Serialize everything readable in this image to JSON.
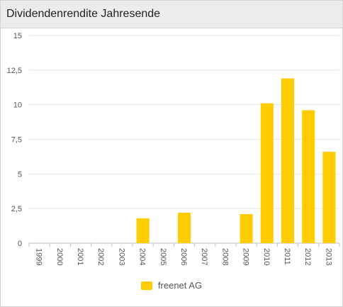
{
  "header": {
    "title": "Dividendenrendite Jahresende"
  },
  "colors": {
    "series": "#ffcc00",
    "grid": "#e6e6e6",
    "axis": "#c0c0c0",
    "tick_text": "#555555",
    "header_bg": "#ececec"
  },
  "chart_data": {
    "type": "bar",
    "title": "Dividendenrendite Jahresende",
    "categories": [
      "1999",
      "2000",
      "2001",
      "2002",
      "2003",
      "2004",
      "2005",
      "2006",
      "2007",
      "2008",
      "2009",
      "2010",
      "2011",
      "2012",
      "2013"
    ],
    "series": [
      {
        "name": "freenet AG",
        "values": [
          null,
          null,
          null,
          null,
          null,
          1.8,
          null,
          2.2,
          null,
          null,
          2.1,
          10.1,
          11.9,
          9.6,
          6.6
        ]
      }
    ],
    "yticks": [
      "0",
      "2,5",
      "5",
      "7,5",
      "10",
      "12,5",
      "15"
    ],
    "ylim": [
      0,
      15
    ],
    "xlabel": "",
    "ylabel": "",
    "grid": true,
    "legend_position": "bottom"
  }
}
